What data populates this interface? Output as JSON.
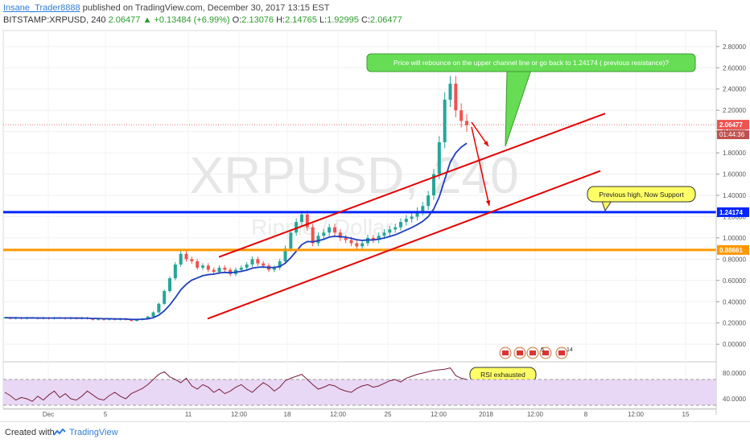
{
  "header": {
    "author": "Insane_Trader8888",
    "published": "published on TradingView.com, December 30, 2017 13:15 EST",
    "symbol": "BITSTAMP:XRPUSD, 240",
    "last": "2.06477",
    "change_arrow": "▲",
    "change": "+0.13484 (+6.99%)",
    "o_label": "O:",
    "o_val": "2.13076",
    "h_label": "H:",
    "h_val": "2.14765",
    "l_label": "L:",
    "l_val": "1.92995",
    "c_label": "C:",
    "c_val": "2.06477"
  },
  "watermark": {
    "main": "XRPUSD, 240",
    "sub": "Ripple / Dollar"
  },
  "colors": {
    "candle_up": "#26a69a",
    "candle_down": "#ef5350",
    "channel": "#e60000",
    "support": "#0026ff",
    "resistance_orange": "#ff9800",
    "ema": "#1f3fbf",
    "rsi_line": "#7b1f3a",
    "rsi_band": "#e8d8f5",
    "callout_green": "#66dd55",
    "callout_yellow": "#ffff66"
  },
  "chart_data": [
    {
      "type": "line",
      "title": "XRPUSD, 240",
      "xlabel": "",
      "ylabel": "",
      "ylim": [
        -0.15,
        2.95
      ],
      "x_ticks": [
        "Dec",
        "5",
        "11",
        "12:00",
        "18",
        "12:00",
        "25",
        "12:00",
        "2018",
        "12:00",
        "8",
        "12:00",
        "15"
      ],
      "y_ticks": [
        "2.80000",
        "2.60000",
        "2.40000",
        "2.20000",
        "2.00000",
        "1.80000",
        "1.60000",
        "1.40000",
        "1.20000",
        "1.00000",
        "0.80000",
        "0.60000",
        "0.40000",
        "0.20000",
        "0.00000"
      ],
      "series": [
        {
          "values": [
            0.25,
            0.24,
            0.25,
            0.24,
            0.25,
            0.25,
            0.24,
            0.25,
            0.24,
            0.25,
            0.25,
            0.24,
            0.25,
            0.24,
            0.25,
            0.24,
            0.23,
            0.24,
            0.23,
            0.24,
            0.23,
            0.24,
            0.23,
            0.22,
            0.23,
            0.24,
            0.26,
            0.3,
            0.38,
            0.5,
            0.62,
            0.75,
            0.85,
            0.8,
            0.78,
            0.72,
            0.74,
            0.7,
            0.68,
            0.72,
            0.7,
            0.66,
            0.7,
            0.72,
            0.75,
            0.8,
            0.76,
            0.74,
            0.7,
            0.72,
            0.78,
            0.9,
            1.05,
            1.15,
            1.22,
            1.1,
            0.95,
            1.02,
            1.05,
            1.1,
            1.05,
            1.0,
            0.98,
            0.95,
            0.92,
            0.95,
            1.0,
            0.98,
            1.02,
            1.05,
            1.08,
            1.1,
            1.15,
            1.18,
            1.2,
            1.25,
            1.3,
            1.4,
            1.6,
            1.9,
            2.3,
            2.45,
            2.2,
            2.1,
            2.06
          ]
        }
      ],
      "price_labels": [
        {
          "label": "2.06477",
          "value": 2.06477,
          "sublabel": "01:44:36"
        },
        {
          "label": "1.24174",
          "value": 1.24174
        },
        {
          "label": "0.88661",
          "value": 0.88661
        }
      ],
      "hlines": [
        {
          "value": 1.24174,
          "color": "#0026ff"
        },
        {
          "value": 0.88661,
          "color": "#ff9800"
        }
      ],
      "annotations": [
        "Price will rebounce on the upper channel line or go back to 1.24174 ( previous resistance)?",
        "Previous high, Now Support",
        "RSI exhausted"
      ],
      "calendar_badges": [
        "5",
        "14"
      ],
      "grid": true
    },
    {
      "type": "line",
      "title": "",
      "xlabel": "",
      "ylabel": "",
      "ylim": [
        25,
        95
      ],
      "y_ticks": [
        "80.0000",
        "40.0000"
      ],
      "series": [
        {
          "values": [
            50,
            45,
            38,
            42,
            40,
            36,
            44,
            38,
            46,
            52,
            42,
            48,
            40,
            38,
            44,
            52,
            46,
            40,
            38,
            45,
            50,
            44,
            40,
            48,
            52,
            56,
            62,
            70,
            78,
            82,
            74,
            70,
            65,
            72,
            60,
            55,
            62,
            58,
            50,
            55,
            48,
            52,
            58,
            62,
            55,
            50,
            58,
            65,
            60,
            52,
            58,
            68,
            72,
            75,
            78,
            70,
            62,
            55,
            58,
            62,
            60,
            55,
            52,
            50,
            56,
            60,
            62,
            58,
            60,
            64,
            68,
            70,
            66,
            72,
            75,
            78,
            80,
            82,
            84,
            85,
            86,
            88,
            76,
            72,
            70
          ]
        }
      ],
      "bands": [
        70,
        30
      ],
      "grid": true
    }
  ],
  "footer": {
    "created_with": "Created with",
    "brand": "TradingView"
  }
}
